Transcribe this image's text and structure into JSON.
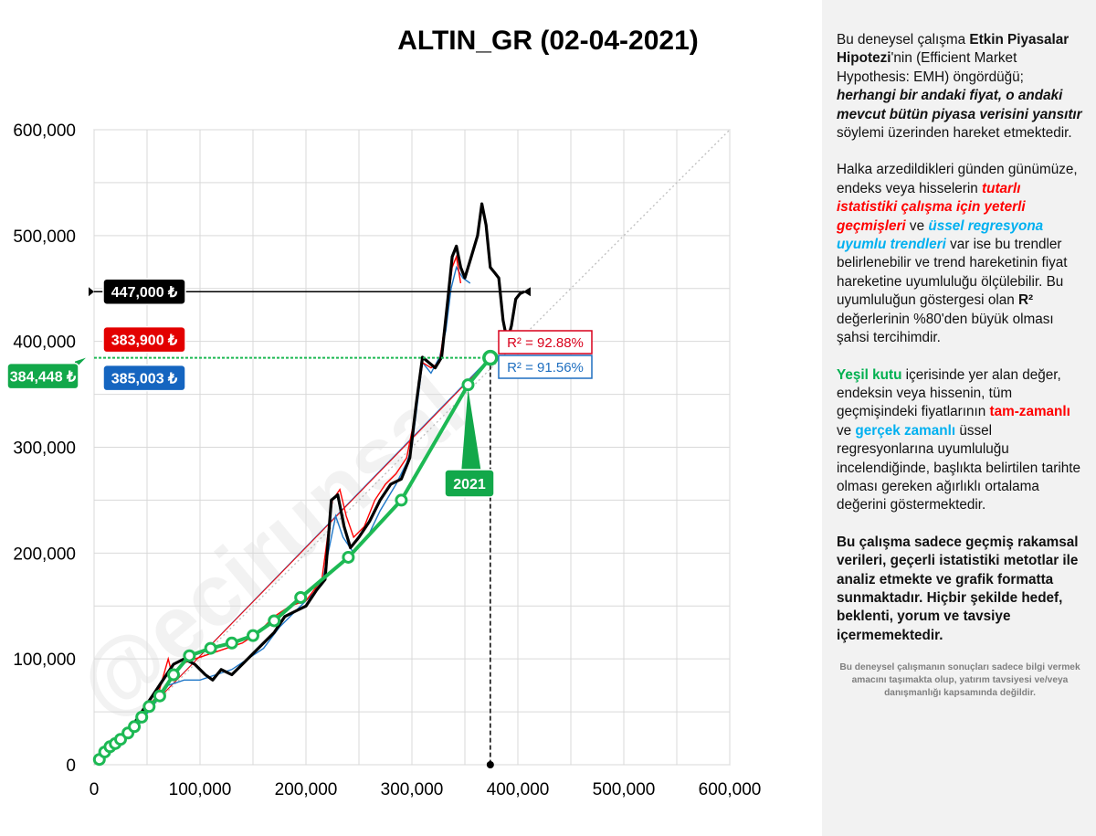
{
  "colors": {
    "red_series": "#ff0000",
    "blue_series": "#1f77c8",
    "price_series": "#000000",
    "green_trend": "#1db954",
    "label_black": "#000000",
    "label_red": "#e30000",
    "label_blue": "#1565c0",
    "label_green": "#12a84a"
  },
  "chart_data": {
    "type": "line",
    "title": "ALTIN_GR (02-04-2021)",
    "xlim": [
      0,
      600000
    ],
    "ylim": [
      0,
      600000
    ],
    "x_ticks": [
      "0",
      "100,000",
      "200,000",
      "300,000",
      "400,000",
      "500,000",
      "600,000"
    ],
    "y_ticks": [
      "0",
      "100,000",
      "200,000",
      "300,000",
      "400,000",
      "500,000",
      "600,000"
    ],
    "x_tick_values": [
      0,
      100000,
      200000,
      300000,
      400000,
      500000,
      600000
    ],
    "y_tick_values": [
      0,
      100000,
      200000,
      300000,
      400000,
      500000,
      600000
    ],
    "grid": true,
    "watermark": "@ecirunsal",
    "series": [
      {
        "key": "red",
        "points": [
          [
            5000,
            5000
          ],
          [
            20000,
            20000
          ],
          [
            35000,
            35000
          ],
          [
            50000,
            55000
          ],
          [
            60000,
            65000
          ],
          [
            70000,
            100000
          ],
          [
            75000,
            80000
          ],
          [
            82000,
            95000
          ],
          [
            95000,
            100000
          ],
          [
            110000,
            105000
          ],
          [
            125000,
            110000
          ],
          [
            140000,
            115000
          ],
          [
            155000,
            125000
          ],
          [
            170000,
            140000
          ],
          [
            185000,
            150000
          ],
          [
            200000,
            155000
          ],
          [
            215000,
            175000
          ],
          [
            225000,
            250000
          ],
          [
            232000,
            260000
          ],
          [
            238000,
            235000
          ],
          [
            245000,
            215000
          ],
          [
            255000,
            225000
          ],
          [
            265000,
            250000
          ],
          [
            275000,
            265000
          ],
          [
            285000,
            275000
          ],
          [
            295000,
            290000
          ],
          [
            303000,
            330000
          ],
          [
            310000,
            380000
          ],
          [
            318000,
            375000
          ],
          [
            326000,
            380000
          ],
          [
            333000,
            430000
          ],
          [
            338000,
            470000
          ],
          [
            342000,
            480000
          ],
          [
            346000,
            455000
          ]
        ]
      },
      {
        "key": "blue",
        "points": [
          [
            5000,
            5000
          ],
          [
            25000,
            20000
          ],
          [
            40000,
            35000
          ],
          [
            55000,
            55000
          ],
          [
            70000,
            75000
          ],
          [
            85000,
            80000
          ],
          [
            100000,
            80000
          ],
          [
            115000,
            85000
          ],
          [
            130000,
            90000
          ],
          [
            145000,
            100000
          ],
          [
            160000,
            110000
          ],
          [
            175000,
            130000
          ],
          [
            190000,
            145000
          ],
          [
            205000,
            160000
          ],
          [
            215000,
            170000
          ],
          [
            222000,
            205000
          ],
          [
            228000,
            235000
          ],
          [
            235000,
            215000
          ],
          [
            245000,
            200000
          ],
          [
            258000,
            215000
          ],
          [
            270000,
            240000
          ],
          [
            285000,
            265000
          ],
          [
            295000,
            285000
          ],
          [
            300000,
            300000
          ],
          [
            305000,
            340000
          ],
          [
            310000,
            380000
          ],
          [
            318000,
            370000
          ],
          [
            326000,
            385000
          ],
          [
            332000,
            410000
          ],
          [
            337000,
            450000
          ],
          [
            342000,
            470000
          ],
          [
            348000,
            460000
          ],
          [
            355000,
            455000
          ]
        ]
      },
      {
        "key": "price",
        "points": [
          [
            5000,
            5000
          ],
          [
            15000,
            15000
          ],
          [
            25000,
            25000
          ],
          [
            35000,
            35000
          ],
          [
            45000,
            50000
          ],
          [
            55000,
            65000
          ],
          [
            65000,
            80000
          ],
          [
            75000,
            95000
          ],
          [
            85000,
            100000
          ],
          [
            95000,
            95000
          ],
          [
            105000,
            85000
          ],
          [
            112000,
            80000
          ],
          [
            120000,
            90000
          ],
          [
            130000,
            85000
          ],
          [
            140000,
            95000
          ],
          [
            150000,
            105000
          ],
          [
            160000,
            115000
          ],
          [
            170000,
            125000
          ],
          [
            180000,
            140000
          ],
          [
            190000,
            145000
          ],
          [
            200000,
            150000
          ],
          [
            210000,
            165000
          ],
          [
            218000,
            175000
          ],
          [
            224000,
            250000
          ],
          [
            230000,
            255000
          ],
          [
            236000,
            225000
          ],
          [
            242000,
            205000
          ],
          [
            250000,
            215000
          ],
          [
            260000,
            230000
          ],
          [
            270000,
            250000
          ],
          [
            280000,
            265000
          ],
          [
            290000,
            270000
          ],
          [
            298000,
            290000
          ],
          [
            304000,
            340000
          ],
          [
            310000,
            385000
          ],
          [
            316000,
            380000
          ],
          [
            322000,
            375000
          ],
          [
            328000,
            385000
          ],
          [
            334000,
            440000
          ],
          [
            338000,
            480000
          ],
          [
            342000,
            490000
          ],
          [
            346000,
            470000
          ],
          [
            350000,
            460000
          ],
          [
            356000,
            480000
          ],
          [
            362000,
            500000
          ],
          [
            366000,
            530000
          ],
          [
            370000,
            510000
          ],
          [
            374000,
            470000
          ],
          [
            378000,
            465000
          ],
          [
            382000,
            460000
          ],
          [
            386000,
            420000
          ],
          [
            390000,
            400000
          ],
          [
            394000,
            415000
          ],
          [
            398000,
            440000
          ],
          [
            402000,
            445000
          ],
          [
            406000,
            447000
          ]
        ]
      },
      {
        "key": "red_trend",
        "points": [
          [
            5000,
            5000
          ],
          [
            374000,
            383900
          ]
        ]
      },
      {
        "key": "blue_trend",
        "points": [
          [
            5000,
            5000
          ],
          [
            374000,
            385003
          ]
        ]
      },
      {
        "key": "green_trend",
        "points": [
          [
            5000,
            5000
          ],
          [
            10000,
            12000
          ],
          [
            15000,
            17000
          ],
          [
            20000,
            20000
          ],
          [
            25000,
            24000
          ],
          [
            32000,
            30000
          ],
          [
            38000,
            36000
          ],
          [
            45000,
            45000
          ],
          [
            52000,
            55000
          ],
          [
            62000,
            65000
          ],
          [
            75000,
            85000
          ],
          [
            90000,
            103000
          ],
          [
            110000,
            110000
          ],
          [
            130000,
            115000
          ],
          [
            150000,
            122000
          ],
          [
            170000,
            136000
          ],
          [
            195000,
            158000
          ],
          [
            240000,
            196000
          ],
          [
            290000,
            250000
          ],
          [
            353000,
            359000
          ],
          [
            374000,
            384448
          ]
        ]
      }
    ],
    "green_markers": [
      [
        5000,
        5000
      ],
      [
        10000,
        12000
      ],
      [
        15000,
        17000
      ],
      [
        20000,
        20000
      ],
      [
        25000,
        24000
      ],
      [
        32000,
        30000
      ],
      [
        38000,
        36000
      ],
      [
        45000,
        45000
      ],
      [
        52000,
        55000
      ],
      [
        62000,
        65000
      ],
      [
        75000,
        85000
      ],
      [
        90000,
        103000
      ],
      [
        110000,
        110000
      ],
      [
        130000,
        115000
      ],
      [
        150000,
        122000
      ],
      [
        170000,
        136000
      ],
      [
        195000,
        158000
      ],
      [
        240000,
        196000
      ],
      [
        290000,
        250000
      ],
      [
        353000,
        359000
      ],
      [
        374000,
        384448
      ]
    ],
    "hline_current": 447000,
    "hline_expected": 384448,
    "vline_x": 374000,
    "callouts": {
      "current": "447,000 ₺",
      "red": "383,900 ₺",
      "blue": "385,003 ₺",
      "green": "384,448 ₺",
      "year": "2021",
      "r2_red": "R² = 92.88%",
      "r2_blue": "R² = 91.56%"
    }
  },
  "side_panel": {
    "p1": {
      "a": "Bu deneysel çalışma ",
      "b": "Etkin Piyasalar Hipotezi",
      "c": "'nin (Efficient Market Hypothesis: EMH) öngördüğü; ",
      "d": "herhangi bir andaki fiyat, o andaki mevcut bütün piyasa verisini yansıtır",
      "e": "  söylemi üzerinden hareket etmektedir."
    },
    "p2": {
      "a": "Halka arzedildikleri günden günümüze, endeks veya hisselerin ",
      "b": "tutarlı istatistiki çalışma için yeterli geçmişleri",
      "c": " ve ",
      "d": "üssel regresyona uyumlu trendleri",
      "e": " var ise bu trendler belirlenebilir  ve trend hareketinin fiyat hareketine uyumluluğu ölçülebilir.  Bu uyumluluğun göstergesi olan ",
      "f": "R²",
      "g": " değerlerinin %80'den büyük olması şahsi tercihimdir."
    },
    "p3": {
      "a": "Yeşil kutu",
      "b": " içerisinde yer alan değer, endeksin veya hissenin, tüm geçmişindeki fiyatlarının ",
      "c": "tam-zamanlı",
      "d": " ve ",
      "e": "gerçek zamanlı",
      "f": " üssel regresyonlarına uyumluluğu incelendiğinde, başlıkta belirtilen tarihte olması gereken ağırlıklı ortalama değerini göstermektedir."
    },
    "p4": "Bu çalışma sadece geçmiş rakamsal verileri, geçerli istatistiki metotlar ile  analiz etmekte ve grafik formatta sunmaktadır. Hiçbir şekilde hedef, beklenti, yorum ve tavsiye içermemektedir.",
    "disclaimer": "Bu deneysel çalışmanın sonuçları sadece bilgi vermek amacını taşımakta olup, yatırım tavsiyesi ve/veya danışmanlığı kapsamında değildir."
  }
}
